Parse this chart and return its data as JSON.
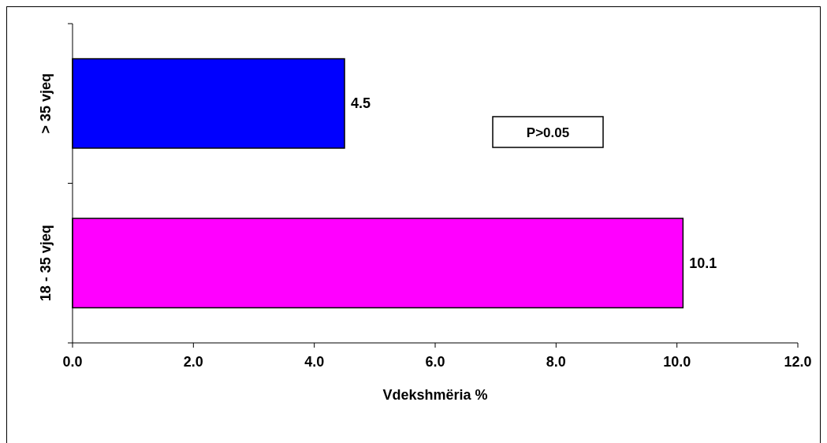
{
  "chart_data": {
    "type": "bar",
    "orientation": "horizontal",
    "categories": [
      "> 35 vjeq",
      "18 - 35 vjeq"
    ],
    "values": [
      4.5,
      10.1
    ],
    "colors": [
      "#0000ff",
      "#ff00ff"
    ],
    "xlim": [
      0,
      12
    ],
    "xticks": [
      {
        "value": 0,
        "label": "0.0"
      },
      {
        "value": 2,
        "label": "2.0"
      },
      {
        "value": 4,
        "label": "4.0"
      },
      {
        "value": 6,
        "label": "6.0"
      },
      {
        "value": 8,
        "label": "8.0"
      },
      {
        "value": 10,
        "label": "10.0"
      },
      {
        "value": 12,
        "label": "12.0"
      }
    ],
    "xlabel": "Vdekshmëria %",
    "data_labels": true,
    "annotations": [
      "P>0.05"
    ]
  }
}
